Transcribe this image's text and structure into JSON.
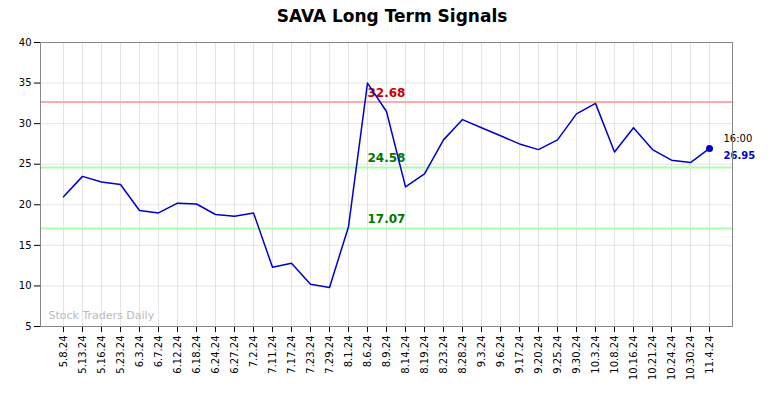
{
  "chart_data": {
    "type": "line",
    "title": "SAVA Long Term Signals",
    "categories": [
      "5.8.24",
      "5.13.24",
      "5.16.24",
      "5.23.24",
      "6.3.24",
      "6.7.24",
      "6.12.24",
      "6.18.24",
      "6.24.24",
      "6.27.24",
      "7.2.24",
      "7.11.24",
      "7.17.24",
      "7.23.24",
      "7.29.24",
      "8.1.24",
      "8.6.24",
      "8.9.24",
      "8.14.24",
      "8.19.24",
      "8.23.24",
      "8.28.24",
      "9.3.24",
      "9.6.24",
      "9.17.24",
      "9.20.24",
      "9.25.24",
      "9.30.24",
      "10.3.24",
      "10.8.24",
      "10.16.24",
      "10.21.24",
      "10.24.24",
      "10.30.24",
      "11.4.24"
    ],
    "values": [
      21.0,
      23.5,
      22.8,
      22.5,
      19.3,
      19.0,
      20.2,
      20.1,
      18.8,
      18.6,
      19.0,
      12.3,
      12.8,
      10.2,
      9.8,
      17.3,
      35.0,
      31.5,
      22.2,
      23.8,
      28.0,
      30.5,
      29.5,
      28.5,
      27.5,
      26.8,
      28.0,
      31.2,
      32.5,
      26.5,
      29.5,
      26.8,
      25.5,
      25.2,
      26.95
    ],
    "color": "#0000cc",
    "ylim": [
      5,
      40
    ],
    "yticks": [
      5,
      10,
      15,
      20,
      25,
      30,
      35,
      40
    ],
    "grid": true,
    "hlines": [
      {
        "value": 32.68,
        "label": "32.68",
        "color": "#ffaaaa",
        "label_color": "#cc0000"
      },
      {
        "value": 24.58,
        "label": "24.58",
        "color": "#aaffaa",
        "label_color": "#007700"
      },
      {
        "value": 17.07,
        "label": "17.07",
        "color": "#aaffaa",
        "label_color": "#007700"
      }
    ],
    "end_label": {
      "time": "16:00",
      "price": "26.95",
      "color": "#0000cc"
    },
    "watermark": {
      "text": "Stock Traders Daily",
      "color": "#bbbbbb"
    }
  }
}
